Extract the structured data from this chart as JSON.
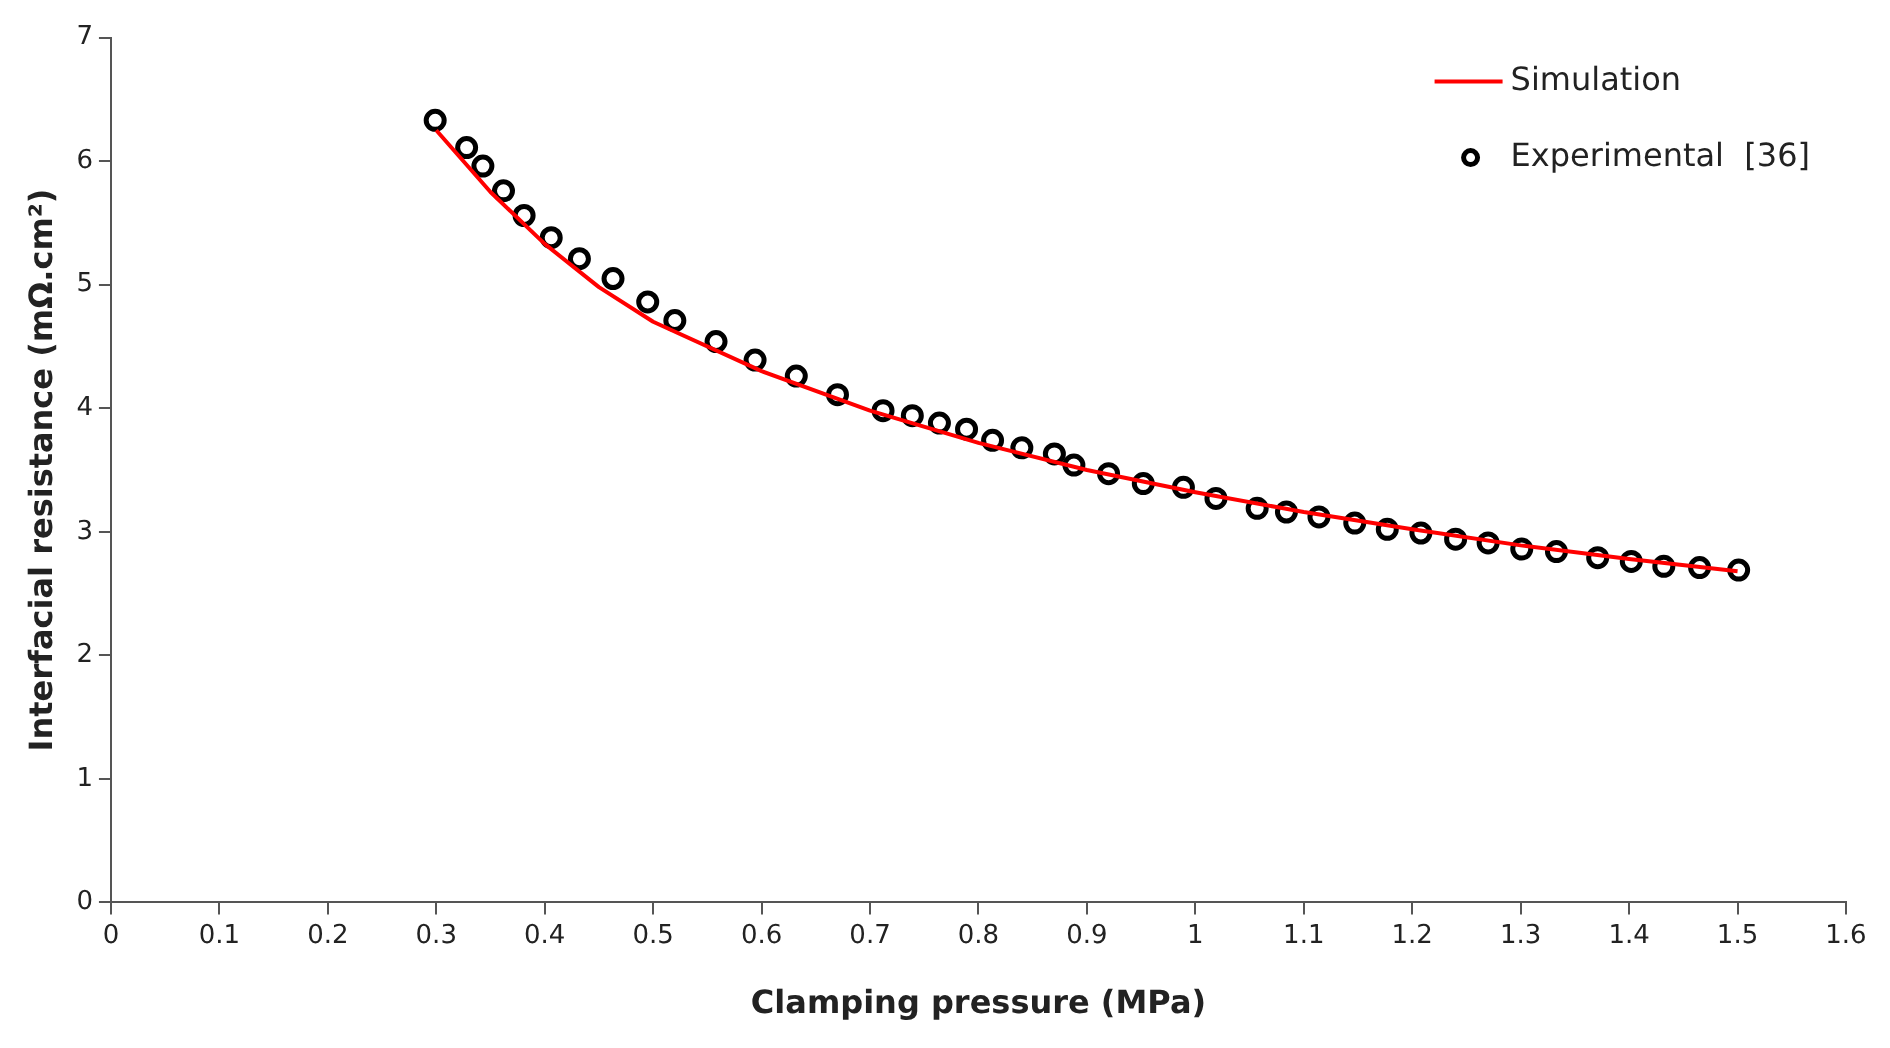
{
  "chart_data": {
    "type": "scatter",
    "xlabel": "Clamping pressure (MPa)",
    "ylabel": "Interfacial resistance (mΩ.cm²)",
    "xlim": [
      0,
      1.6
    ],
    "xticks": [
      0,
      0.1,
      0.2,
      0.3,
      0.4,
      0.5,
      0.6,
      0.7,
      0.8,
      0.9,
      1,
      1.1,
      1.2,
      1.3,
      1.4,
      1.5,
      1.6
    ],
    "ylim": [
      0,
      7
    ],
    "yticks": [
      0,
      1,
      2,
      3,
      4,
      5,
      6,
      7
    ],
    "grid": false,
    "legend": "top right",
    "marker": "circle",
    "series": [
      {
        "name": "Simulation",
        "type": "line",
        "color": "#ff0000",
        "marker": "none",
        "x": [
          0.3,
          0.35,
          0.4,
          0.45,
          0.5,
          0.6,
          0.7,
          0.8,
          0.9,
          1.0,
          1.1,
          1.2,
          1.3,
          1.4,
          1.5
        ],
        "values": [
          6.25,
          5.75,
          5.33,
          4.98,
          4.7,
          4.3,
          3.98,
          3.72,
          3.5,
          3.32,
          3.16,
          3.02,
          2.89,
          2.78,
          2.68
        ]
      },
      {
        "name": "Experimental  [36]",
        "color": "#000000",
        "x": [
          0.299,
          0.328,
          0.343,
          0.362,
          0.381,
          0.406,
          0.432,
          0.463,
          0.495,
          0.52,
          0.558,
          0.594,
          0.632,
          0.67,
          0.712,
          0.739,
          0.764,
          0.789,
          0.813,
          0.84,
          0.87,
          0.888,
          0.92,
          0.952,
          0.989,
          1.019,
          1.057,
          1.084,
          1.114,
          1.147,
          1.177,
          1.208,
          1.24,
          1.27,
          1.301,
          1.333,
          1.371,
          1.402,
          1.432,
          1.465,
          1.501
        ],
        "values": [
          6.33,
          6.11,
          5.96,
          5.76,
          5.56,
          5.38,
          5.21,
          5.05,
          4.86,
          4.71,
          4.54,
          4.39,
          4.26,
          4.11,
          3.98,
          3.94,
          3.88,
          3.83,
          3.74,
          3.68,
          3.63,
          3.54,
          3.47,
          3.39,
          3.36,
          3.27,
          3.19,
          3.16,
          3.12,
          3.07,
          3.02,
          2.99,
          2.94,
          2.91,
          2.86,
          2.84,
          2.79,
          2.76,
          2.72,
          2.71,
          2.69
        ]
      }
    ]
  }
}
